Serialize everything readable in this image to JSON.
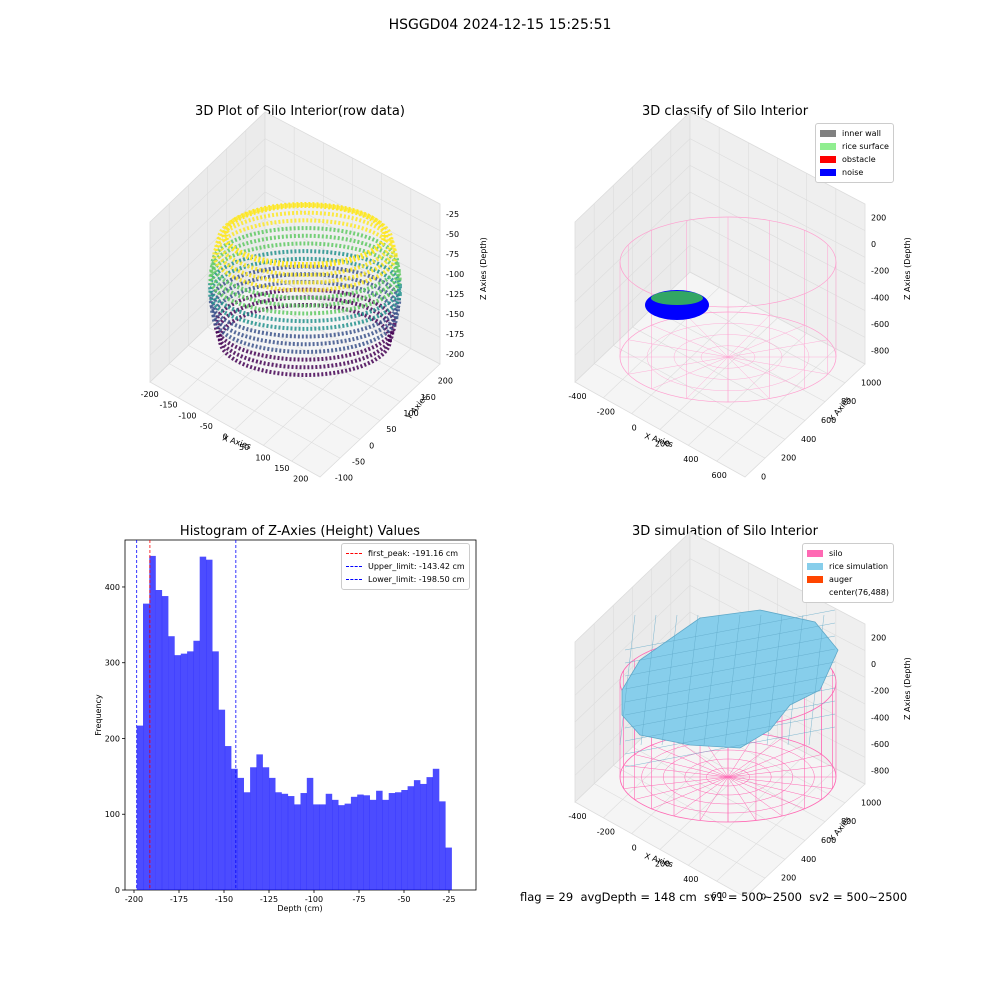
{
  "suptitle": "HSGGD04 2024-12-15 15:25:51",
  "panels": {
    "raw": {
      "title": "3D Plot of Silo Interior(row data)",
      "xlabel": "X Axies",
      "ylabel": "Y Axies",
      "zlabel": "Z Axies (Depth)",
      "xticks": [
        "-200",
        "-150",
        "-100",
        "-50",
        "0",
        "50",
        "100",
        "150",
        "200"
      ],
      "yticks": [
        "-100",
        "-50",
        "0",
        "50",
        "100",
        "150",
        "200"
      ],
      "zticks": [
        "-25",
        "-50",
        "-75",
        "-100",
        "-125",
        "-150",
        "-175",
        "-200"
      ]
    },
    "classify": {
      "title": "3D classify of Silo Interior",
      "xlabel": "X Axies",
      "ylabel": "Y Axies",
      "zlabel": "Z Axies (Depth)",
      "xticks": [
        "-400",
        "-200",
        "0",
        "200",
        "400",
        "600"
      ],
      "yticks": [
        "0",
        "200",
        "400",
        "600",
        "800",
        "1000"
      ],
      "zticks": [
        "200",
        "0",
        "-200",
        "-400",
        "-600",
        "-800"
      ],
      "legend": [
        {
          "label": "inner wall",
          "color": "#808080"
        },
        {
          "label": "rice surface",
          "color": "#90ee90"
        },
        {
          "label": "obstacle",
          "color": "#ff0000"
        },
        {
          "label": "noise",
          "color": "#0000ff"
        }
      ]
    },
    "simulation": {
      "title": "3D simulation of Silo Interior",
      "xlabel": "X Axies",
      "ylabel": "Y Axies",
      "zlabel": "Z Axies (Depth)",
      "xticks": [
        "-400",
        "-200",
        "0",
        "200",
        "400",
        "600"
      ],
      "yticks": [
        "0",
        "200",
        "400",
        "600",
        "800",
        "1000"
      ],
      "zticks": [
        "200",
        "0",
        "-200",
        "-400",
        "-600",
        "-800"
      ],
      "legend": [
        {
          "label": "silo",
          "color": "#ff69b4"
        },
        {
          "label": "rice simulation",
          "color": "#87ceeb"
        },
        {
          "label": "auger",
          "color": "#ff4500"
        },
        {
          "label": "center(76,488)",
          "color": ""
        }
      ]
    }
  },
  "footer": "flag = 29  avgDepth = 148 cm  sv1 = 500~2500  sv2 = 500~2500",
  "chart_data": [
    {
      "type": "bar",
      "title": "Histogram of Z-Axies (Height) Values",
      "xlabel": "Depth (cm)",
      "ylabel": "Frequency",
      "bin_start": -198.5,
      "bin_width": 3.5,
      "values": [
        217,
        378,
        441,
        396,
        388,
        335,
        310,
        312,
        315,
        329,
        440,
        436,
        315,
        238,
        190,
        160,
        148,
        129,
        162,
        179,
        162,
        148,
        129,
        127,
        124,
        113,
        128,
        148,
        113,
        113,
        127,
        119,
        112,
        114,
        123,
        126,
        125,
        119,
        131,
        119,
        128,
        129,
        132,
        137,
        145,
        140,
        149,
        160,
        117,
        56
      ],
      "xticks": [
        -200,
        -175,
        -150,
        -125,
        -100,
        -75,
        -50,
        -25
      ],
      "yticks": [
        0,
        100,
        200,
        300,
        400
      ],
      "xlim": [
        -205,
        -10
      ],
      "ylim": [
        0,
        462
      ],
      "bar_color": "#0000ff",
      "vlines": [
        {
          "label": "first_peak: -191.16 cm",
          "x": -191.16,
          "color": "#ff0000"
        },
        {
          "label": "Upper_limit: -143.42 cm",
          "x": -143.42,
          "color": "#0000ff"
        },
        {
          "label": "Lower_limit: -198.50 cm",
          "x": -198.5,
          "color": "#0000ff"
        }
      ]
    }
  ]
}
